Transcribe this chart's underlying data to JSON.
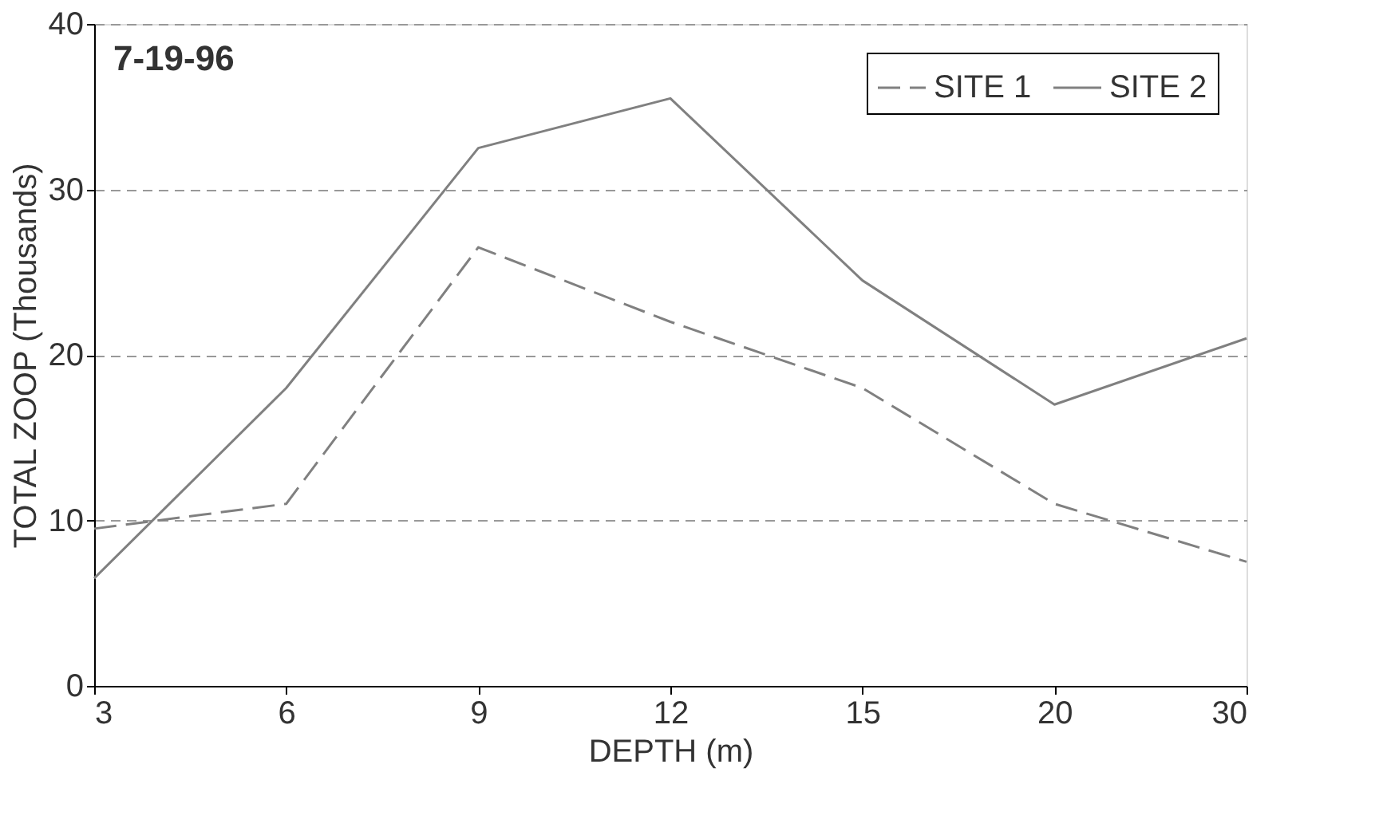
{
  "chart_data": {
    "type": "line",
    "xlabel": "DEPTH (m)",
    "ylabel": "TOTAL ZOOP (Thousands)",
    "annotations": [
      "7-19-96"
    ],
    "categories": [
      "3",
      "6",
      "9",
      "12",
      "15",
      "20",
      "30"
    ],
    "series": [
      {
        "name": "SITE 1",
        "color": "#808080",
        "line_style": "dashed",
        "values": [
          9.5,
          11,
          26.5,
          22,
          18,
          11,
          7.5
        ]
      },
      {
        "name": "SITE 2",
        "color": "#808080",
        "line_style": "solid",
        "values": [
          6.5,
          18,
          32.5,
          35.5,
          24.5,
          17,
          21
        ]
      }
    ],
    "ylim": [
      0,
      40
    ],
    "yticks": [
      0,
      10,
      20,
      30,
      40
    ],
    "grid": "y",
    "legend": "top right"
  }
}
